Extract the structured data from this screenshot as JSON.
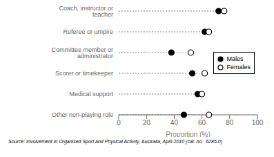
{
  "chart_data": {
    "type": "dot",
    "orientation": "horizontal",
    "categories": [
      "Coach, instructor or teacher",
      "Referee or umpire",
      "Committee member or administrator",
      "Scorer or timekeeper",
      "Medical support",
      "Other non-playing role"
    ],
    "series": [
      {
        "name": "Males",
        "color": "#000000",
        "marker": "filled_circle",
        "values": [
          72,
          62,
          38,
          53,
          57,
          47
        ]
      },
      {
        "name": "Females",
        "color": "#000000",
        "marker": "open_circle",
        "values": [
          76,
          65,
          52,
          62,
          60,
          65
        ]
      }
    ],
    "xlabel": "Proportion (%)",
    "xlim": [
      0,
      100
    ],
    "xticks": [
      0,
      20,
      40,
      60,
      80,
      100
    ],
    "grid": false,
    "legend": "right",
    "annotation": "Source: Involvement in Organised Sport and Physical Activity, Australia, April 2010 (cat. no.  6285.0)"
  }
}
